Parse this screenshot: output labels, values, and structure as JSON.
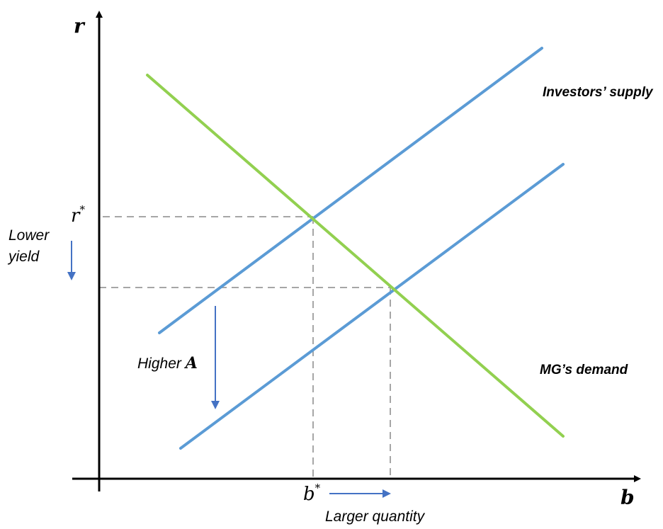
{
  "axes": {
    "y_label": "r",
    "x_label": "b"
  },
  "equilibrium": {
    "r_star": "r",
    "r_star_sup": "*",
    "b_star": "b",
    "b_star_sup": "*"
  },
  "labels": {
    "supply": "Investors’ supply",
    "demand": "MG’s demand",
    "lower_yield_1": "Lower",
    "lower_yield_2": "yield",
    "higher_a_text": "Higher ",
    "higher_a_var": "A",
    "larger_quantity": "Larger quantity"
  },
  "colors": {
    "supply": "#5b9bd5",
    "demand": "#92d050",
    "arrow": "#4472c4",
    "guide": "#a6a6a6",
    "axis": "#000000"
  }
}
